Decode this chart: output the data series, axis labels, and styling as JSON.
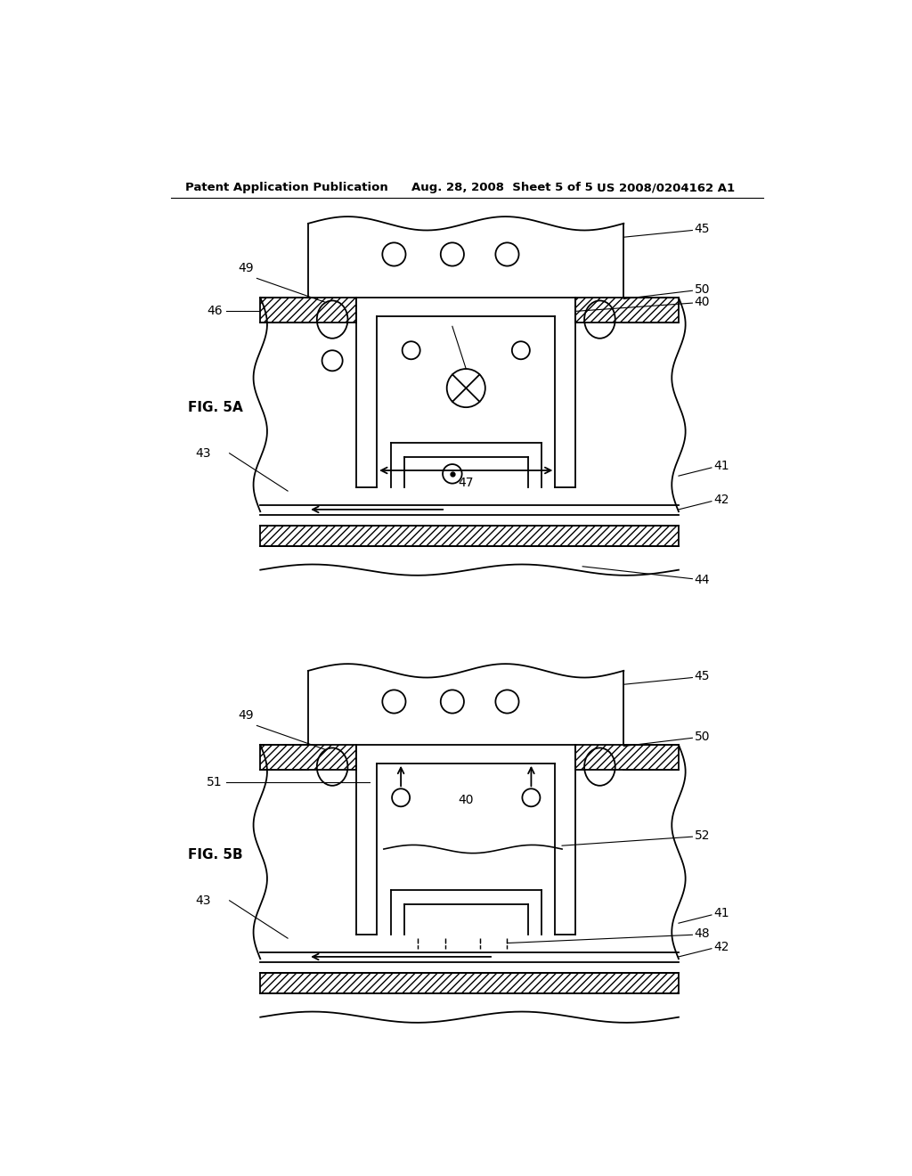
{
  "bg_color": "#ffffff",
  "line_color": "#000000",
  "header_text1": "Patent Application Publication",
  "header_text2": "Aug. 28, 2008  Sheet 5 of 5",
  "header_text3": "US 2008/0204162 A1",
  "fig5a_label": "FIG. 5A",
  "fig5b_label": "FIG. 5B",
  "fig_width": 1024,
  "fig_height": 1320
}
